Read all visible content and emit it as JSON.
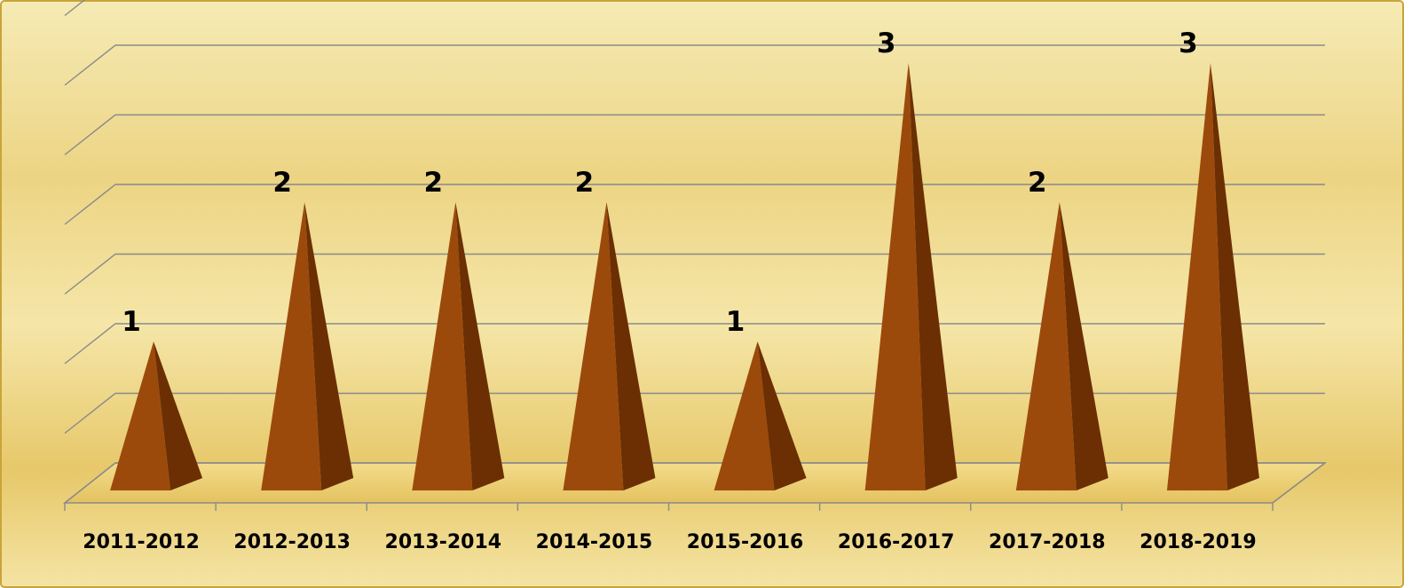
{
  "chart_data": {
    "type": "bar",
    "style": "3d-pyramid",
    "title": "",
    "xlabel": "",
    "ylabel": "",
    "categories": [
      "2011-2012",
      "2012-2013",
      "2013-2014",
      "2014-2015",
      "2015-2016",
      "2016-2017",
      "2017-2018",
      "2018-2019"
    ],
    "values": [
      1,
      2,
      2,
      2,
      1,
      3,
      2,
      3
    ],
    "data_labels": [
      "1",
      "2",
      "2",
      "2",
      "1",
      "3",
      "2",
      "3"
    ],
    "ylim": [
      0,
      3.5
    ],
    "y_axis_labels_visible": false,
    "grid": true,
    "legend": "none",
    "colors": {
      "bar_front": "#9c4a0c",
      "bar_side": "#6b2f03",
      "background_light": "#f8eebc",
      "background_mid": "#e8c767",
      "gridline": "#8a8a8a",
      "border": "#c9a43a"
    }
  }
}
